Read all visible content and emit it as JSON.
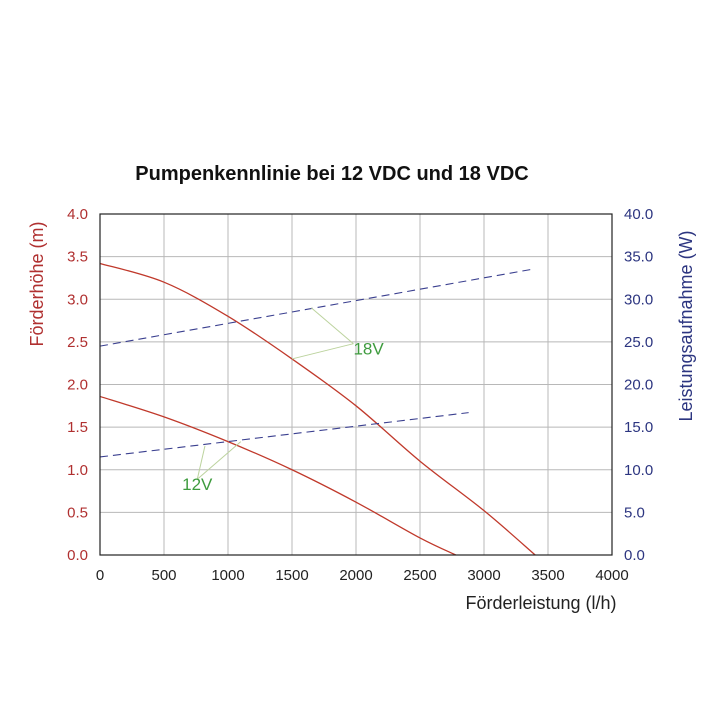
{
  "chart_data": {
    "type": "line",
    "title": "Pumpenkennlinie bei 12 VDC und 18 VDC",
    "xlabel": "Förderleistung (l/h)",
    "ylabel_left": "Förderhöhe (m)",
    "ylabel_right": "Leistungsaufnahme (W)",
    "xlim": [
      0,
      4000
    ],
    "ylim_left": [
      0,
      4.0
    ],
    "ylim_right": [
      0,
      40.0
    ],
    "x_ticks": [
      "0",
      "500",
      "1000",
      "1500",
      "2000",
      "2500",
      "3000",
      "3500",
      "4000"
    ],
    "y_left_ticks": [
      "0.0",
      "0.5",
      "1.0",
      "1.5",
      "2.0",
      "2.5",
      "3.0",
      "3.5",
      "4.0"
    ],
    "y_right_ticks": [
      "0.0",
      "5.0",
      "10.0",
      "15.0",
      "20.0",
      "25.0",
      "30.0",
      "35.0",
      "40.0"
    ],
    "grid": true,
    "colors": {
      "head": "#c0392b",
      "power": "#3a3f8f",
      "annotation": "#3e9b3e",
      "left_axis": "#b03030",
      "right_axis": "#2c3580",
      "grid": "#b8b8b8"
    },
    "series": [
      {
        "axis": "left",
        "style": "solid",
        "x": [
          0,
          500,
          1000,
          1500,
          2000,
          2500,
          3000,
          3400
        ],
        "y": [
          3.42,
          3.2,
          2.8,
          2.3,
          1.75,
          1.1,
          0.52,
          0.0
        ]
      },
      {
        "axis": "left",
        "style": "solid",
        "x": [
          0,
          500,
          1000,
          1500,
          2000,
          2500,
          2780
        ],
        "y": [
          1.86,
          1.62,
          1.33,
          1.0,
          0.62,
          0.2,
          0.0
        ]
      },
      {
        "axis": "right",
        "style": "dashed",
        "x": [
          0,
          3370
        ],
        "y": [
          24.5,
          33.5
        ]
      },
      {
        "axis": "right",
        "style": "dashed",
        "x": [
          0,
          2880
        ],
        "y": [
          11.5,
          16.7
        ]
      }
    ],
    "annotations": [
      {
        "text": "18V",
        "x": 1980,
        "y": 2.42,
        "pointers": [
          [
            1650,
            2.9
          ],
          [
            1500,
            2.3
          ]
        ]
      },
      {
        "text": "12V",
        "x": 760,
        "y": 0.83,
        "pointers": [
          [
            820,
            1.28
          ],
          [
            1100,
            1.33
          ]
        ]
      }
    ]
  }
}
